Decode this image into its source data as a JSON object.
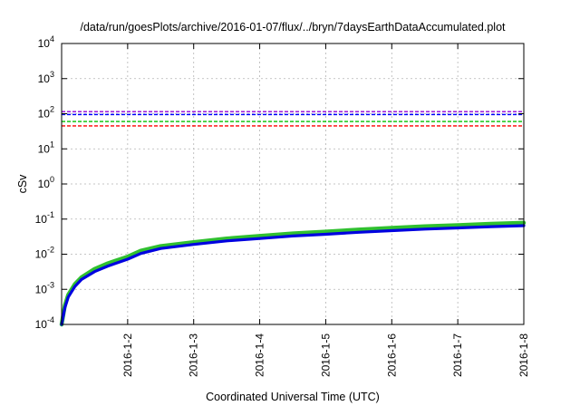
{
  "chart_data": {
    "type": "line",
    "title": "/data/run/goesPlots/archive/2016-01-07/flux/../bryn/7daysEarthDataAccumulated.plot",
    "xlabel": "Coordinated Universal Time (UTC)",
    "ylabel": "cSv",
    "yscale": "log",
    "ylim": [
      0.0001,
      10000
    ],
    "y_ticks": [
      {
        "value": 0.0001,
        "base": "10",
        "exp": "-4"
      },
      {
        "value": 0.001,
        "base": "10",
        "exp": "-3"
      },
      {
        "value": 0.01,
        "base": "10",
        "exp": "-2"
      },
      {
        "value": 0.1,
        "base": "10",
        "exp": "-1"
      },
      {
        "value": 1,
        "base": "10",
        "exp": "0"
      },
      {
        "value": 10,
        "base": "10",
        "exp": "1"
      },
      {
        "value": 100,
        "base": "10",
        "exp": "2"
      },
      {
        "value": 1000,
        "base": "10",
        "exp": "3"
      },
      {
        "value": 10000,
        "base": "10",
        "exp": "4"
      }
    ],
    "xlim": [
      1,
      8
    ],
    "x_ticks": [
      {
        "value": 2,
        "label": "2016-1-2"
      },
      {
        "value": 3,
        "label": "2016-1-3"
      },
      {
        "value": 4,
        "label": "2016-1-4"
      },
      {
        "value": 5,
        "label": "2016-1-5"
      },
      {
        "value": 6,
        "label": "2016-1-6"
      },
      {
        "value": 7,
        "label": "2016-1-7"
      },
      {
        "value": 8,
        "label": "2016-1-8"
      }
    ],
    "grid": true,
    "thresholds": [
      {
        "value": 115,
        "color": "#9400d3"
      },
      {
        "value": 95,
        "color": "#0000ff"
      },
      {
        "value": 60,
        "color": "#00c000"
      },
      {
        "value": 45,
        "color": "#ff0000"
      }
    ],
    "series": [
      {
        "color": "#30c030",
        "x": [
          1.0,
          1.05,
          1.1,
          1.2,
          1.3,
          1.5,
          1.7,
          2.0,
          2.2,
          2.5,
          3.0,
          3.5,
          4.0,
          4.5,
          5.0,
          5.5,
          6.0,
          6.5,
          7.0,
          7.5,
          8.0
        ],
        "y": [
          0.0001,
          0.00035,
          0.0007,
          0.0014,
          0.0022,
          0.0038,
          0.0055,
          0.0085,
          0.0125,
          0.017,
          0.022,
          0.028,
          0.033,
          0.039,
          0.044,
          0.05,
          0.056,
          0.062,
          0.067,
          0.073,
          0.078
        ]
      },
      {
        "color": "#0000e0",
        "x": [
          1.0,
          1.05,
          1.1,
          1.2,
          1.3,
          1.5,
          1.7,
          2.0,
          2.2,
          2.5,
          3.0,
          3.5,
          4.0,
          4.5,
          5.0,
          5.5,
          6.0,
          6.5,
          7.0,
          7.5,
          8.0
        ],
        "y": [
          0.0001,
          0.0003,
          0.0006,
          0.0012,
          0.0019,
          0.0032,
          0.0046,
          0.0072,
          0.0105,
          0.0145,
          0.019,
          0.024,
          0.028,
          0.033,
          0.037,
          0.042,
          0.047,
          0.052,
          0.056,
          0.061,
          0.065
        ]
      }
    ]
  }
}
